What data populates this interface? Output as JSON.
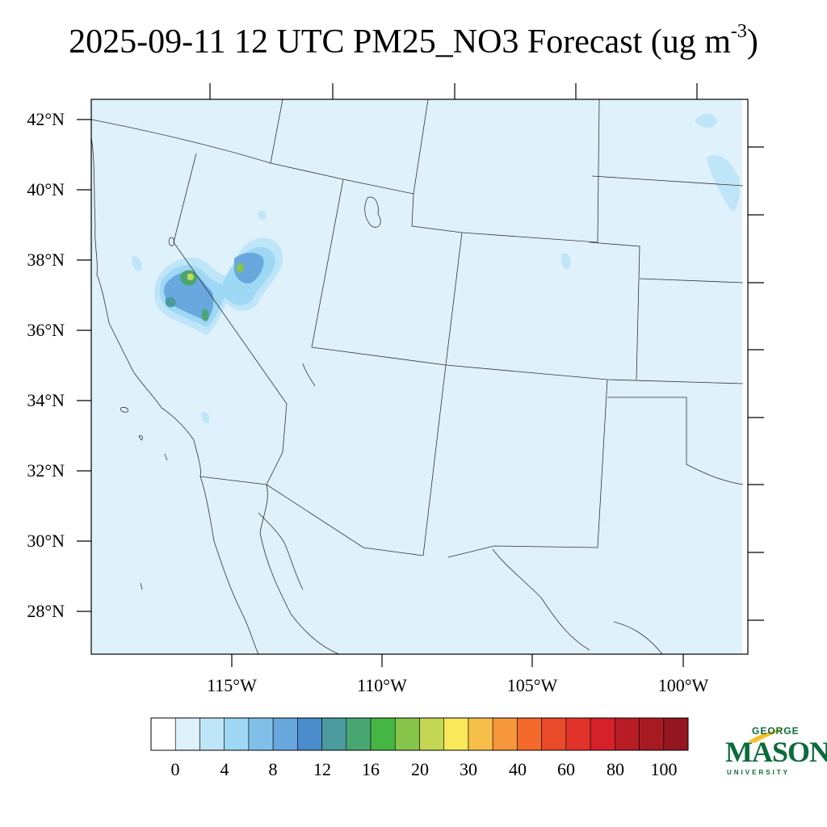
{
  "title": {
    "main": "2025-09-11 12 UTC PM25_NO3 Forecast (ug m",
    "exponent": "-3",
    "close": ")"
  },
  "map": {
    "lat_labels": [
      "42°N",
      "40°N",
      "38°N",
      "36°N",
      "34°N",
      "32°N",
      "30°N",
      "28°N"
    ],
    "lon_labels": [
      "115°W",
      "110°W",
      "105°W",
      "100°W"
    ]
  },
  "colorbar": {
    "labels": [
      "0",
      "4",
      "8",
      "12",
      "16",
      "20",
      "30",
      "40",
      "60",
      "80",
      "100"
    ],
    "colors": [
      "#ffffff",
      "#dff1fb",
      "#bfe5f8",
      "#9ed8f4",
      "#80c0e8",
      "#68a8de",
      "#4a8ccc",
      "#4a9a9e",
      "#49a672",
      "#45b644",
      "#86c44a",
      "#c4d755",
      "#f8e85a",
      "#f6bf4a",
      "#f5973a",
      "#f36a2a",
      "#e84a2a",
      "#e2332a",
      "#d6202a",
      "#b81c24",
      "#a81a22",
      "#941620"
    ]
  },
  "logo": {
    "line1": "GEORGE",
    "line2": "MASON",
    "line3": "UNIVERSITY",
    "color": "#0b6b3a"
  }
}
